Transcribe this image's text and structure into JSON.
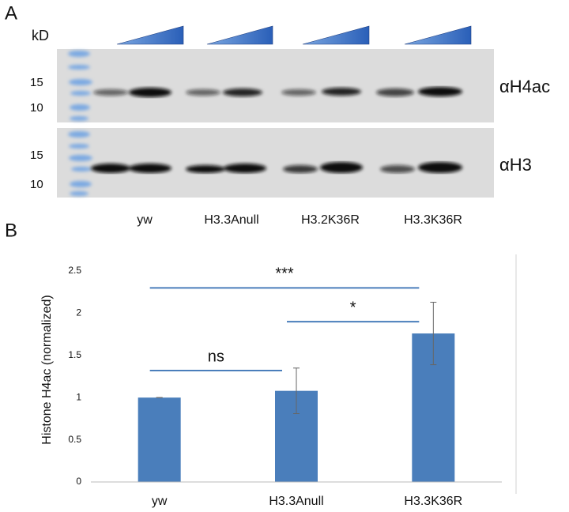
{
  "blot": {
    "panel_label": "A",
    "unit": "kD",
    "top_markers": [
      "15",
      "10"
    ],
    "bottom_markers": [
      "15",
      "10"
    ],
    "top_antibody": "αH4ac",
    "bottom_antibody": "αH3",
    "lanes": [
      "yw",
      "H3.3Anull",
      "H3.2K36R",
      "H3.3K36R"
    ]
  },
  "panel_b_label": "B",
  "chart_data": {
    "type": "bar",
    "ylabel": "Histone H4ac  (normalized)",
    "categories": [
      "yw",
      "H3.3Anull",
      "H3.3K36R"
    ],
    "values": [
      1.0,
      1.08,
      1.76
    ],
    "errors": [
      0,
      0.27,
      0.37
    ],
    "color": "#4a7ebb",
    "ylim": [
      0,
      2.5
    ],
    "yticks": [
      0,
      0.5,
      1,
      1.5,
      2,
      2.5
    ],
    "grid": false,
    "significance": [
      {
        "label": "***",
        "from": 0,
        "to": 2,
        "y": 2.3
      },
      {
        "label": "*",
        "from": 1,
        "to": 2,
        "y": 1.9
      },
      {
        "label": "ns",
        "from": 0,
        "to": 1,
        "y": 1.32
      }
    ]
  }
}
